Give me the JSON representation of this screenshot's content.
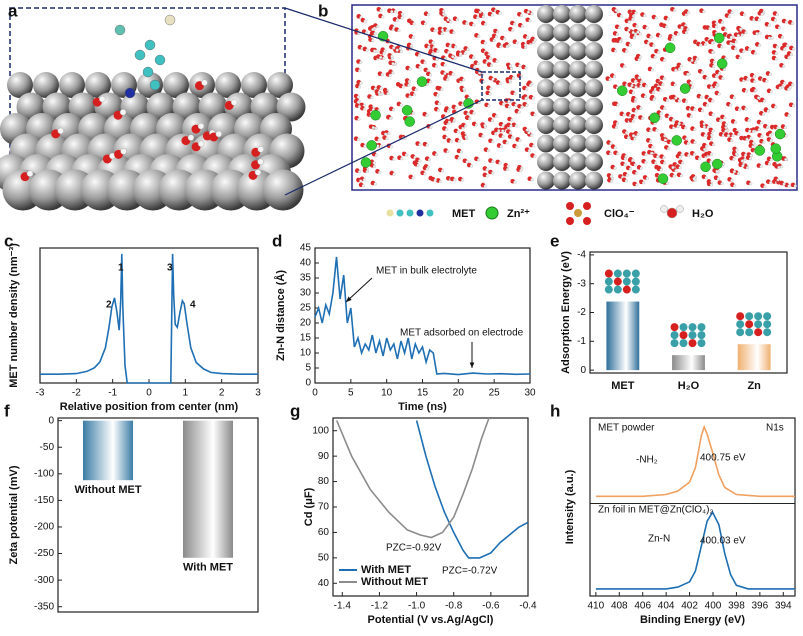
{
  "figure": {
    "panel_labels": [
      "a",
      "b"
    ],
    "legend": [
      "MET",
      "Zn²⁺",
      "ClO₄⁻",
      "H₂O"
    ]
  },
  "chart_data": [
    {
      "type": "line",
      "label": "c",
      "xlabel": "Relative position from center (nm)",
      "ylabel": "MET number density (nm⁻³)",
      "xlim": [
        -3,
        3
      ],
      "xticks": [
        -3,
        -2,
        -1,
        0,
        1,
        2,
        3
      ],
      "ylim": [
        0,
        23
      ],
      "color": "#1f6fb4",
      "x": [
        -3,
        -2.5,
        -2,
        -1.7,
        -1.5,
        -1.35,
        -1.2,
        -1.1,
        -1.02,
        -0.95,
        -0.88,
        -0.82,
        -0.78,
        -0.75,
        -0.72,
        -0.66,
        -0.6,
        -0.5,
        0,
        0.5,
        0.6,
        0.65,
        0.68,
        0.72,
        0.78,
        0.85,
        0.92,
        0.97,
        1.05,
        1.15,
        1.3,
        1.5,
        1.7,
        2,
        2.5,
        3
      ],
      "values": [
        1.5,
        1.5,
        1.6,
        2,
        2.6,
        3.6,
        6,
        9.5,
        13,
        14.5,
        12,
        9,
        14,
        22,
        13,
        3,
        0,
        0,
        0,
        0,
        0,
        22,
        15,
        10,
        9.5,
        12,
        14,
        13.5,
        10,
        6,
        3.5,
        2.4,
        1.8,
        1.6,
        1.5,
        1.5
      ],
      "annotations": [
        "1",
        "2",
        "3",
        "4"
      ]
    },
    {
      "type": "line",
      "label": "d",
      "xlabel": "Time (ns)",
      "ylabel": "Zn-N distance (Å)",
      "xlim": [
        0,
        30
      ],
      "xticks": [
        0,
        5,
        10,
        15,
        20,
        25,
        30
      ],
      "ylim": [
        0,
        45
      ],
      "yticks": [
        0,
        5,
        10,
        15,
        20,
        25,
        30,
        35,
        40,
        45
      ],
      "color": "#1f6fb4",
      "x": [
        0,
        0.5,
        1,
        1.5,
        2,
        2.5,
        3,
        3.5,
        4,
        4.5,
        5,
        5.5,
        6,
        6.5,
        7,
        7.5,
        8,
        8.5,
        9,
        9.5,
        10,
        10.5,
        11,
        11.5,
        12,
        12.5,
        13,
        13.5,
        14,
        14.5,
        15,
        15.5,
        16,
        16.5,
        17,
        18,
        20,
        22,
        24,
        26,
        28,
        30
      ],
      "values": [
        22,
        25,
        20,
        26,
        23,
        30,
        42,
        28,
        36,
        20,
        25,
        12,
        15,
        10,
        13,
        11,
        16,
        10,
        14,
        9,
        15,
        11,
        13,
        8,
        14,
        10,
        15,
        8,
        13,
        10,
        12,
        7,
        11,
        10,
        3,
        3.2,
        2.8,
        3.3,
        3,
        3.1,
        2.9,
        3
      ],
      "annotations": [
        "MET in bulk electrolyte",
        "MET adsorbed on electrode"
      ]
    },
    {
      "type": "bar",
      "label": "e",
      "ylabel": "Adsorption Energy (eV)",
      "categories": [
        "MET",
        "H₂O",
        "Zn"
      ],
      "values": [
        -2.38,
        -0.52,
        -0.9
      ],
      "colors": [
        "#2f6f9a",
        "#8a8a8a",
        "#f0b070"
      ],
      "ylim": [
        0.1,
        -4.1
      ],
      "yticks": [
        0,
        -1,
        -2,
        -3,
        -4
      ]
    },
    {
      "type": "bar",
      "label": "f",
      "ylabel": "Zeta potential (mV)",
      "categories": [
        "Without MET",
        "With MET"
      ],
      "values": [
        -112,
        -258
      ],
      "colors": [
        "#3a7ca5",
        "#8a8a8a"
      ],
      "ylim": [
        -360,
        5
      ],
      "yticks": [
        0,
        -50,
        -100,
        -150,
        -200,
        -250,
        -300,
        -350
      ]
    },
    {
      "type": "line",
      "label": "g",
      "xlabel": "Potential (V vs.Ag/AgCl)",
      "ylabel": "Cd (μF)",
      "xlim": [
        -1.45,
        -0.4
      ],
      "xticks": [
        -1.4,
        -1.2,
        {
          "value": -1,
          "label": "-1.0"
        },
        -0.8,
        -0.6,
        -0.4
      ],
      "ylim": [
        35,
        105
      ],
      "yticks": [
        40,
        50,
        60,
        70,
        80,
        90,
        100
      ],
      "legend": "lower left",
      "series": [
        {
          "name": "With MET",
          "color": "#1f6fb4",
          "x": [
            -1.0,
            -0.95,
            -0.9,
            -0.85,
            -0.8,
            -0.75,
            -0.72,
            -0.66,
            -0.6,
            -0.55,
            -0.5,
            -0.45,
            -0.4
          ],
          "values": [
            104,
            90,
            78,
            68,
            60,
            53,
            50,
            50,
            52,
            56,
            59,
            62,
            64
          ]
        },
        {
          "name": "Without MET",
          "color": "#8c8c8c",
          "x": [
            -1.43,
            -1.35,
            -1.25,
            -1.15,
            -1.05,
            -0.98,
            -0.92,
            -0.86,
            -0.8,
            -0.75,
            -0.7,
            -0.65,
            -0.61
          ],
          "values": [
            104,
            90,
            77,
            68,
            61,
            59,
            58,
            60,
            66,
            75,
            85,
            97,
            105
          ]
        }
      ],
      "annotations": [
        "PZC=-0.92V",
        "PZC=-0.72V"
      ]
    },
    {
      "type": "line",
      "label": "h",
      "xlabel": "Binding Energy (eV)",
      "ylabel": "Intensity (a.u.)",
      "xlim": [
        410.5,
        393
      ],
      "xticks": [
        410,
        408,
        406,
        404,
        402,
        400,
        398,
        396,
        394
      ],
      "ylim": [
        0,
        100
      ],
      "series": [
        {
          "name": "MET powder",
          "color": "#f0a060",
          "x": [
            410,
            406,
            404,
            403,
            402,
            401.5,
            401,
            400.75,
            400.5,
            400,
            399.5,
            399,
            398,
            396,
            393
          ],
          "values": [
            56,
            56,
            57,
            59,
            64,
            72,
            90,
            95,
            91,
            80,
            68,
            61,
            57,
            56,
            56
          ]
        },
        {
          "name": "Zn foil in MET@Zn(ClO₄)₂",
          "color": "#1f6fb4",
          "x": [
            410,
            404,
            403,
            402,
            401.5,
            401,
            400.5,
            400.03,
            399.5,
            399,
            398.5,
            398,
            397,
            393
          ],
          "values": [
            4,
            4,
            5,
            8,
            14,
            28,
            42,
            47,
            40,
            24,
            12,
            6,
            4,
            4
          ]
        }
      ],
      "annotations": [
        "N1s",
        "-NH₂",
        "400.75 eV",
        "Zn-N",
        "400.03 eV"
      ]
    }
  ]
}
